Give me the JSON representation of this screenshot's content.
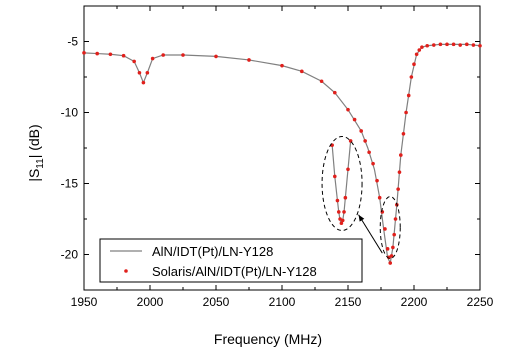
{
  "chart_data": {
    "type": "line",
    "xlabel": "Frequency (MHz)",
    "ylabel_main": "|S",
    "ylabel_sub": "11",
    "ylabel_tail": "| (dB)",
    "xlim": [
      1950,
      2250
    ],
    "ylim": [
      -22.5,
      -2.5
    ],
    "xticks": [
      1950,
      2000,
      2050,
      2100,
      2150,
      2200,
      2250
    ],
    "yticks": [
      -5,
      -10,
      -15,
      -20
    ],
    "grid": false,
    "legend_position": "bottom-left",
    "series": [
      {
        "name": "AlN/IDT(Pt)/LN-Y128",
        "style": "line",
        "color": "#808080",
        "x": [
          1950,
          1960,
          1970,
          1980,
          1988,
          1992,
          1995,
          1998,
          2002,
          2010,
          2025,
          2050,
          2075,
          2100,
          2115,
          2130,
          2140,
          2150,
          2160,
          2165,
          2170,
          2174,
          2177,
          2180,
          2182,
          2184,
          2187,
          2190,
          2194,
          2198,
          2202,
          2206,
          2210,
          2220,
          2230,
          2240,
          2250
        ],
        "y": [
          -5.8,
          -5.85,
          -5.9,
          -6.0,
          -6.4,
          -7.2,
          -7.9,
          -7.2,
          -6.2,
          -5.95,
          -5.95,
          -6.05,
          -6.3,
          -6.7,
          -7.1,
          -7.8,
          -8.6,
          -9.8,
          -11.3,
          -12.5,
          -14.0,
          -16.0,
          -18.2,
          -20.2,
          -20.6,
          -19.5,
          -16.5,
          -13.0,
          -10.0,
          -7.5,
          -5.9,
          -5.4,
          -5.3,
          -5.2,
          -5.2,
          -5.2,
          -5.3
        ]
      },
      {
        "name": "Solaris/AlN/IDT(Pt)/LN-Y128",
        "style": "scatter",
        "color": "#e0201c",
        "x": [
          1950,
          1960,
          1970,
          1980,
          1988,
          1992,
          1995,
          1998,
          2002,
          2010,
          2025,
          2050,
          2075,
          2100,
          2115,
          2130,
          2140,
          2150,
          2155,
          2160,
          2163,
          2166,
          2169,
          2172,
          2174,
          2176,
          2178,
          2180,
          2181,
          2182,
          2183,
          2184,
          2185,
          2186,
          2187,
          2188,
          2189,
          2190,
          2192,
          2194,
          2196,
          2198,
          2200,
          2202,
          2204,
          2206,
          2210,
          2215,
          2220,
          2225,
          2230,
          2235,
          2240,
          2245,
          2250
        ],
        "y": [
          -5.8,
          -5.85,
          -5.9,
          -6.0,
          -6.4,
          -7.2,
          -7.9,
          -7.2,
          -6.2,
          -5.95,
          -5.95,
          -6.05,
          -6.3,
          -6.7,
          -7.1,
          -7.8,
          -8.6,
          -9.8,
          -10.5,
          -11.3,
          -12.0,
          -12.8,
          -13.6,
          -14.8,
          -16.0,
          -17.0,
          -18.2,
          -19.6,
          -20.2,
          -20.6,
          -20.1,
          -19.5,
          -18.6,
          -17.5,
          -16.5,
          -15.4,
          -14.2,
          -13.0,
          -11.5,
          -10.0,
          -8.8,
          -7.5,
          -6.6,
          -5.9,
          -5.6,
          -5.4,
          -5.3,
          -5.25,
          -5.2,
          -5.2,
          -5.2,
          -5.25,
          -5.2,
          -5.25,
          -5.3
        ]
      }
    ],
    "inset": {
      "description_points_x": [
        2138,
        2140,
        2142,
        2143,
        2144,
        2145,
        2146,
        2147,
        2148,
        2150,
        2152
      ],
      "line_y": [
        -12.3,
        -14.5,
        -16.2,
        -17.0,
        -17.6,
        -17.8,
        -17.6,
        -17.0,
        -16.0,
        -14.0,
        -12.0
      ],
      "scatter_y": [
        -12.3,
        -14.5,
        -16.2,
        -17.0,
        -17.5,
        -17.8,
        -17.6,
        -17.0,
        -16.0,
        -14.0,
        -12.0
      ]
    }
  }
}
